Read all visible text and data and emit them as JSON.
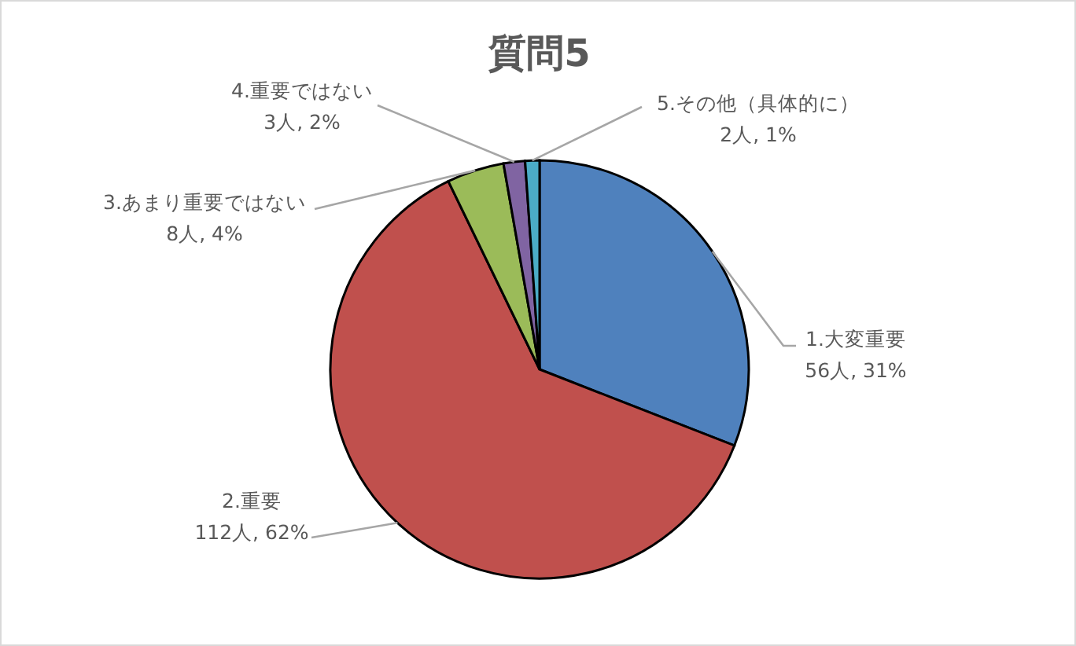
{
  "chart_data": {
    "type": "pie",
    "title": "質問5",
    "categories": [
      "1.大変重要",
      "2.重要",
      "3.あまり重要ではない",
      "4.重要ではない",
      "5.その他（具体的に）"
    ],
    "values": [
      56,
      112,
      8,
      3,
      2
    ],
    "colors": [
      "#4f81bd",
      "#c0504d",
      "#9bbb59",
      "#8064a2",
      "#4bacc6"
    ],
    "value_labels": [
      "56人, 31%",
      "112人, 62%",
      "8人, 4%",
      "3人, 2%",
      "2人, 1%"
    ]
  }
}
